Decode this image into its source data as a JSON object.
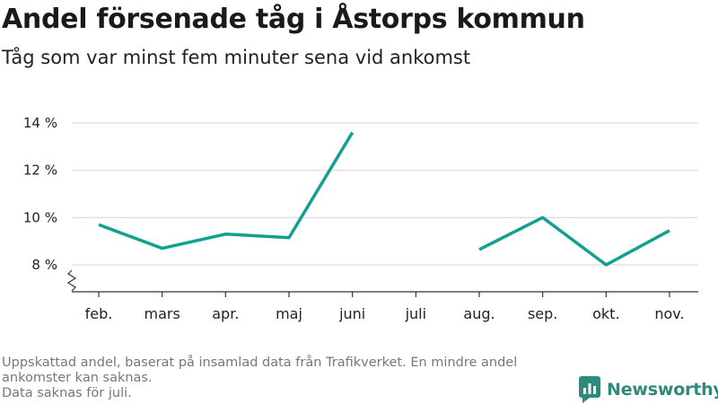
{
  "header": {
    "title": "Andel försenade tåg i Åstorps kommun",
    "subtitle": "Tåg som var minst fem minuter sena vid ankomst"
  },
  "footer": {
    "note_line1": "Uppskattad andel, baserat på insamlad data från Trafikverket. En mindre andel ankomster kan saknas.",
    "note_line2": "Data saknas för juli."
  },
  "brand": {
    "name": "Newsworthy",
    "color": "#2e8b7c",
    "icon": "bar-chart-logo-icon"
  },
  "chart_data": {
    "type": "line",
    "title": "Andel försenade tåg i Åstorps kommun",
    "subtitle": "Tåg som var minst fem minuter sena vid ankomst",
    "xlabel": "",
    "ylabel": "",
    "categories": [
      "feb.",
      "mars",
      "apr.",
      "maj",
      "juni",
      "juli",
      "aug.",
      "sep.",
      "okt.",
      "nov."
    ],
    "series": [
      {
        "values": [
          9.7,
          8.7,
          9.3,
          9.15,
          13.6,
          null,
          8.65,
          10.0,
          8.0,
          9.45
        ]
      }
    ],
    "y_ticks": [
      8,
      10,
      12,
      14
    ],
    "y_tick_labels": [
      "8 %",
      "10 %",
      "12 %",
      "14 %"
    ],
    "ylim": [
      7,
      14.5
    ],
    "y_axis_break": true,
    "grid": "horizontal",
    "line_color": "#12a090"
  }
}
